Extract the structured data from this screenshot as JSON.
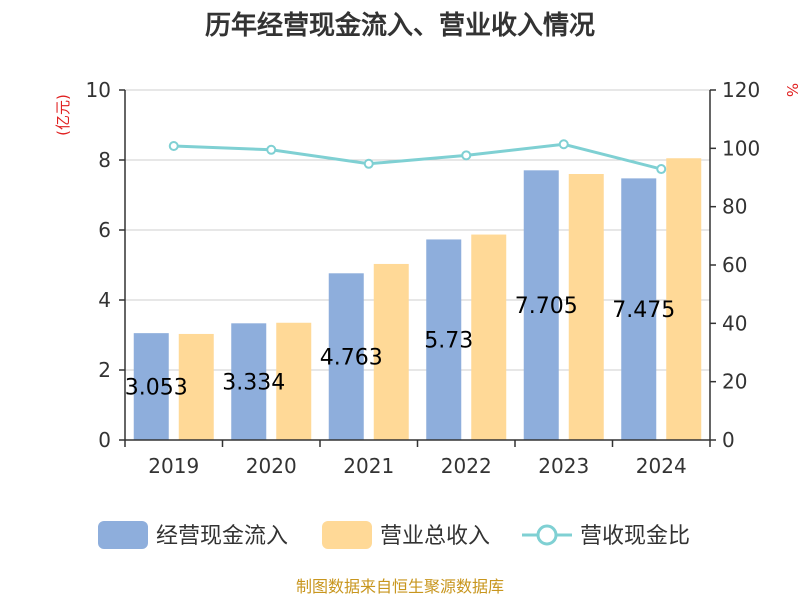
{
  "chart_data": {
    "type": "bar",
    "title": "历年经营现金流入、营业收入情况",
    "categories": [
      "2019",
      "2020",
      "2021",
      "2022",
      "2023",
      "2024"
    ],
    "left_axis": {
      "unit": "(亿元)",
      "ylim": [
        0,
        10
      ],
      "ticks": [
        "0",
        "2",
        "4",
        "6",
        "8",
        "10"
      ]
    },
    "right_axis": {
      "unit": "%",
      "ylim": [
        0,
        120
      ],
      "ticks": [
        "0",
        "20",
        "40",
        "60",
        "80",
        "100",
        "120"
      ]
    },
    "series": [
      {
        "name": "经营现金流入",
        "type": "bar",
        "axis": "left",
        "color": "#8eaedc",
        "values": [
          3.053,
          3.334,
          4.763,
          5.73,
          7.705,
          7.475
        ],
        "labels": [
          "3.053",
          "3.334",
          "4.763",
          "5.73",
          "7.705",
          "7.475"
        ]
      },
      {
        "name": "营业总收入",
        "type": "bar",
        "axis": "left",
        "color": "#ffd997",
        "values": [
          3.03,
          3.35,
          5.03,
          5.87,
          7.6,
          8.05
        ]
      },
      {
        "name": "营收现金比",
        "type": "line",
        "axis": "right",
        "color": "#7fd0d3",
        "values": [
          100.8,
          99.5,
          94.7,
          97.6,
          101.4,
          92.9
        ]
      }
    ],
    "grid": true,
    "legend": "bottom"
  },
  "source": "制图数据来自恒生聚源数据库"
}
